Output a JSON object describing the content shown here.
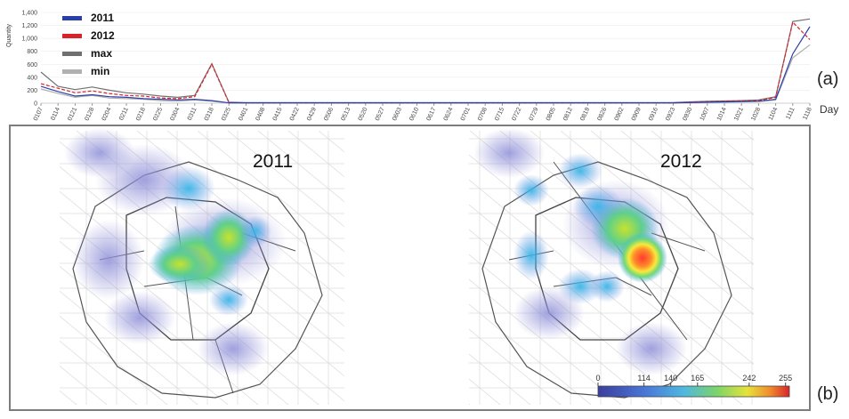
{
  "panels": {
    "a_label": "(a)",
    "b_label": "(b)"
  },
  "chart_data": {
    "type": "line",
    "ylabel": "Quantity",
    "xlabel": "Day",
    "ylim": [
      0,
      1400
    ],
    "yticks": [
      0,
      200,
      400,
      600,
      800,
      "1,000",
      "1,200",
      "1,400"
    ],
    "categories": [
      "0107",
      "0114",
      "0121",
      "0128",
      "0204",
      "0211",
      "0218",
      "0225",
      "0304",
      "0311",
      "0318",
      "0325",
      "0401",
      "0408",
      "0415",
      "0422",
      "0429",
      "0506",
      "0513",
      "0520",
      "0527",
      "0603",
      "0610",
      "0617",
      "0624",
      "0701",
      "0708",
      "0715",
      "0722",
      "0729",
      "0805",
      "0812",
      "0819",
      "0826",
      "0902",
      "0909",
      "0916",
      "0923",
      "0930",
      "1007",
      "1014",
      "1021",
      "1028",
      "1104",
      "1111",
      "1118"
    ],
    "legend": {
      "position": "top-left"
    },
    "series": [
      {
        "name": "2011",
        "color": "#2b3fa8",
        "values": [
          260,
          180,
          110,
          130,
          100,
          90,
          70,
          60,
          50,
          60,
          40,
          5,
          5,
          5,
          5,
          5,
          5,
          5,
          5,
          5,
          5,
          5,
          5,
          5,
          5,
          5,
          5,
          5,
          5,
          5,
          5,
          5,
          5,
          5,
          5,
          5,
          5,
          5,
          10,
          15,
          20,
          25,
          30,
          60,
          760,
          1180
        ]
      },
      {
        "name": "2012",
        "color": "#d8232a",
        "values": [
          300,
          230,
          160,
          190,
          150,
          120,
          110,
          80,
          70,
          100,
          600,
          10,
          5,
          5,
          5,
          5,
          5,
          5,
          5,
          5,
          5,
          5,
          5,
          5,
          5,
          5,
          5,
          5,
          5,
          5,
          5,
          5,
          5,
          5,
          5,
          5,
          5,
          5,
          15,
          25,
          30,
          35,
          40,
          90,
          1250,
          980
        ]
      },
      {
        "name": "max",
        "color": "#707070",
        "values": [
          480,
          260,
          210,
          250,
          200,
          160,
          140,
          110,
          90,
          120,
          610,
          15,
          10,
          10,
          10,
          10,
          10,
          10,
          10,
          10,
          10,
          10,
          10,
          10,
          10,
          10,
          10,
          10,
          10,
          10,
          10,
          10,
          10,
          10,
          10,
          10,
          10,
          10,
          20,
          30,
          35,
          40,
          50,
          100,
          1260,
          1300
        ]
      },
      {
        "name": "min",
        "color": "#b0b0b0",
        "values": [
          220,
          150,
          90,
          120,
          80,
          70,
          60,
          40,
          30,
          50,
          30,
          3,
          3,
          3,
          3,
          3,
          3,
          3,
          3,
          3,
          3,
          3,
          3,
          3,
          3,
          3,
          3,
          3,
          3,
          3,
          3,
          3,
          3,
          3,
          3,
          3,
          3,
          3,
          5,
          10,
          15,
          20,
          25,
          50,
          700,
          900
        ]
      }
    ]
  },
  "heatmaps": [
    {
      "label": "2011"
    },
    {
      "label": "2012"
    }
  ],
  "colorbar": {
    "ticks": [
      "0",
      "114",
      "140",
      "165",
      "242",
      "255"
    ],
    "colors": [
      "#3b3e9e",
      "#4a78d6",
      "#4fb8e0",
      "#7bd46a",
      "#e6e23a",
      "#f08b2d",
      "#d8232a"
    ]
  }
}
